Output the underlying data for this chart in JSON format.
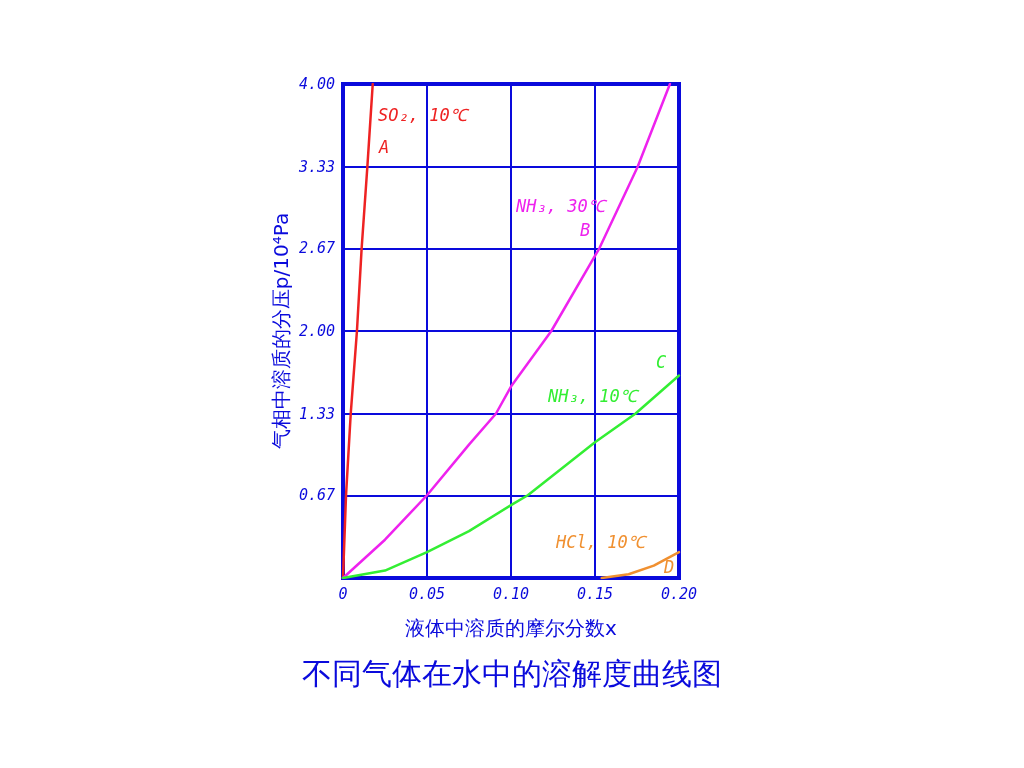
{
  "chart_data": {
    "type": "line",
    "title": "不同气体在水中的溶解度曲线图",
    "xlabel": "液体中溶质的摩尔分数x",
    "ylabel": "气相中溶质的分压p/10⁴Pa",
    "series": [
      {
        "color": "#ee2222",
        "x": [
          0,
          0.0018,
          0.0046,
          0.0083,
          0.0111,
          0.0145,
          0.0177
        ],
        "values": [
          0,
          0.67,
          1.33,
          2.0,
          2.67,
          3.33,
          4.0
        ]
      },
      {
        "color": "#ee22ee",
        "x": [
          0,
          0.025,
          0.05,
          0.075,
          0.091,
          0.1,
          0.124,
          0.1526,
          0.1754,
          0.1946
        ],
        "values": [
          0,
          0.31,
          0.67,
          1.08,
          1.33,
          1.55,
          2.0,
          2.67,
          3.33,
          4.0
        ]
      },
      {
        "color": "#33ee33",
        "x": [
          0,
          0.025,
          0.05,
          0.075,
          0.1,
          0.11,
          0.15,
          0.174,
          0.2
        ],
        "values": [
          0,
          0.06,
          0.21,
          0.38,
          0.59,
          0.67,
          1.1,
          1.33,
          1.64
        ]
      },
      {
        "color": "#f09030",
        "x": [
          0.154,
          0.17,
          0.185,
          0.2
        ],
        "values": [
          0,
          0.03,
          0.1,
          0.21
        ]
      }
    ],
    "annotations": [
      "SO₂, 10℃",
      "A",
      "NH₃, 30℃",
      "B",
      "NH₃, 10℃",
      "C",
      "HCl, 10℃",
      "D"
    ],
    "xlim": [
      0,
      0.2
    ],
    "xticks": [
      0,
      {
        "value": 0.05,
        "label": "0.05"
      },
      {
        "value": 0.1,
        "label": "0.10"
      },
      {
        "value": 0.15,
        "label": "0.15"
      },
      {
        "value": 0.2,
        "label": "0.20"
      }
    ],
    "ylim": [
      0,
      4
    ],
    "yticks": [
      {
        "value": 0,
        "label": null
      },
      0.67,
      1.33,
      {
        "value": 2,
        "label": "2.00"
      },
      2.67,
      3.33,
      {
        "value": 4,
        "label": "4.00"
      }
    ],
    "grid": true,
    "marker": "none",
    "line_style": "solid"
  }
}
